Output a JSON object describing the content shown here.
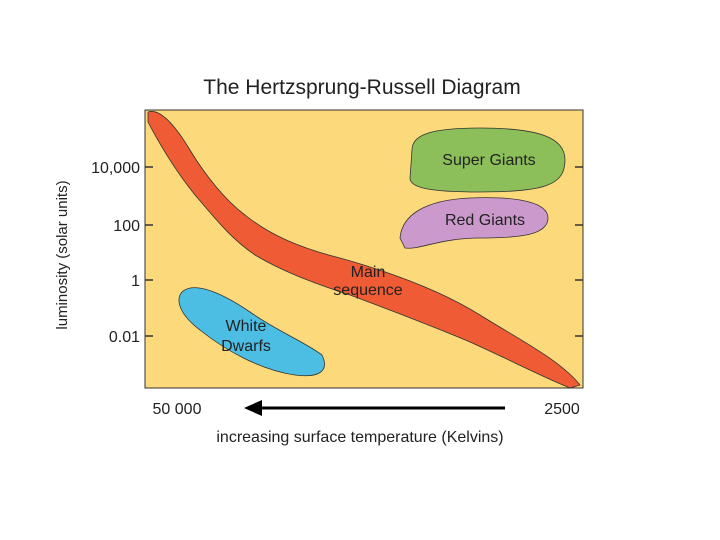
{
  "title": "The Hertzsprung-Russell Diagram",
  "y_axis": {
    "label": "luminosity (solar units)",
    "ticks": [
      "10,000",
      "100",
      "1",
      "0.01"
    ]
  },
  "x_axis": {
    "label": "increasing surface temperature (Kelvins)",
    "left": "50 000",
    "right": "2500"
  },
  "regions": [
    {
      "lines": [
        "Super Giants"
      ]
    },
    {
      "lines": [
        "Red Giants"
      ]
    },
    {
      "lines": [
        "Main",
        "sequence"
      ]
    },
    {
      "lines": [
        "White",
        "Dwarfs"
      ]
    }
  ]
}
